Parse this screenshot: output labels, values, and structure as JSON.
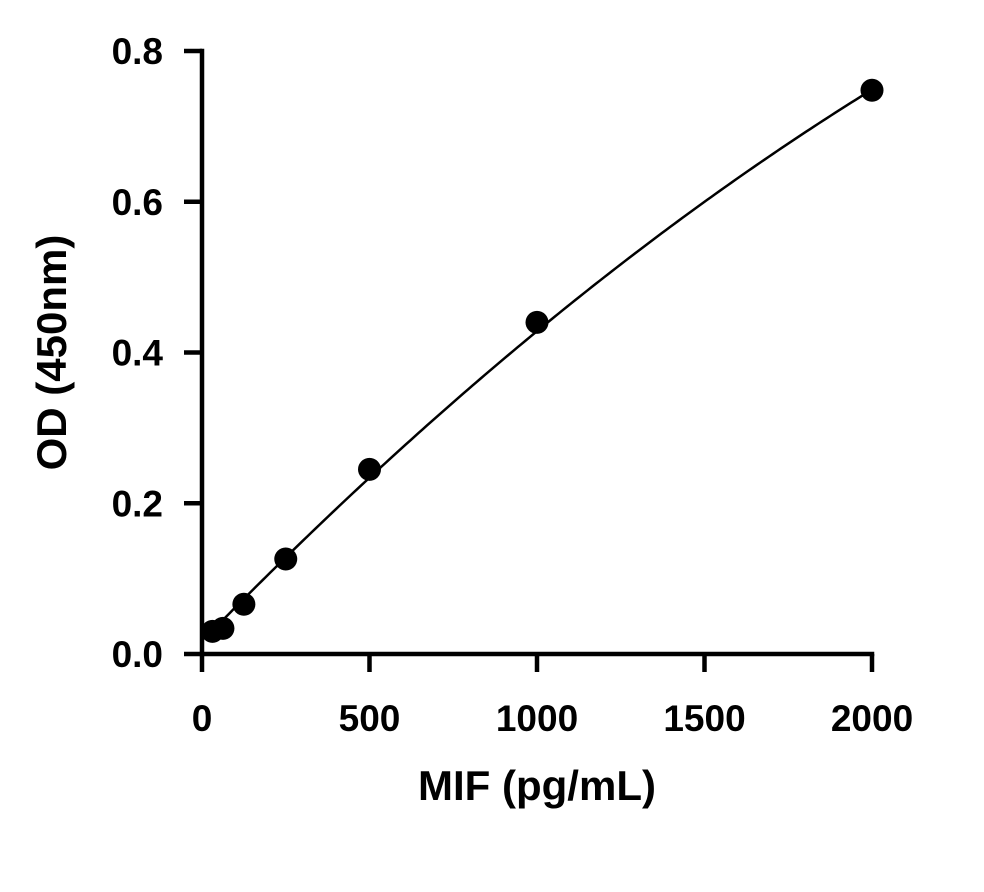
{
  "chart_data": {
    "type": "scatter",
    "title": "",
    "xlabel": "MIF (pg/mL)",
    "ylabel": "OD (450nm)",
    "xlim": [
      0,
      2000
    ],
    "ylim": [
      0,
      0.8
    ],
    "x_ticks": [
      0,
      500,
      1000,
      1500,
      2000
    ],
    "x_tick_labels": [
      "0",
      "500",
      "1000",
      "1500",
      "2000"
    ],
    "y_ticks": [
      0.0,
      0.2,
      0.4,
      0.6,
      0.8
    ],
    "y_tick_labels": [
      "0.0",
      "0.2",
      "0.4",
      "0.6",
      "0.8"
    ],
    "grid": false,
    "legend": "none",
    "series": [
      {
        "x": [
          31.25,
          62.5,
          125,
          250,
          500,
          1000,
          2000
        ],
        "y": [
          0.03,
          0.034,
          0.066,
          0.126,
          0.245,
          0.44,
          0.748
        ]
      }
    ],
    "fit_curve": {
      "form": "quadratic",
      "coefficients": [
        0.0168,
        0.000457,
        -4.55e-08
      ]
    },
    "colors": {
      "marker": "#000000",
      "line": "#000000",
      "axis": "#000000"
    }
  }
}
